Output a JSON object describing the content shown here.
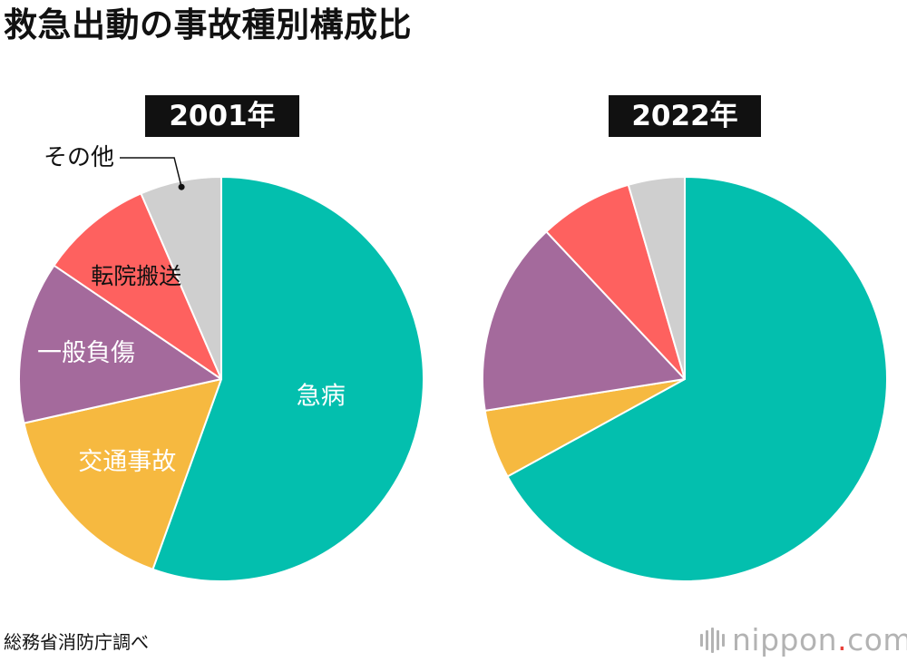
{
  "title": "救急出動の事故種別構成比",
  "source": "総務省消防庁調べ",
  "brand": {
    "name": "nippon",
    "dot": ".",
    "suffix": "com"
  },
  "colors": {
    "急病": "#03bfae",
    "交通事故": "#f6b940",
    "一般負傷": "#a46a9c",
    "転院搬送": "#fe615f",
    "その他": "#cfcfcf"
  },
  "chart_data": [
    {
      "type": "pie",
      "title": "2001年",
      "start": "12 o'clock",
      "direction": "clockwise",
      "slices": [
        {
          "label": "急病",
          "value": 55.5
        },
        {
          "label": "交通事故",
          "value": 16.0
        },
        {
          "label": "一般負傷",
          "value": 13.0
        },
        {
          "label": "転院搬送",
          "value": 9.0
        },
        {
          "label": "その他",
          "value": 6.5
        }
      ],
      "labels_shown": [
        "急病",
        "交通事故",
        "一般負傷",
        "転院搬送",
        "その他"
      ]
    },
    {
      "type": "pie",
      "title": "2022年",
      "start": "12 o'clock",
      "direction": "clockwise",
      "slices": [
        {
          "label": "急病",
          "value": 67.0
        },
        {
          "label": "交通事故",
          "value": 5.5
        },
        {
          "label": "一般負傷",
          "value": 15.5
        },
        {
          "label": "転院搬送",
          "value": 7.5
        },
        {
          "label": "その他",
          "value": 4.5
        }
      ],
      "labels_shown": []
    }
  ]
}
